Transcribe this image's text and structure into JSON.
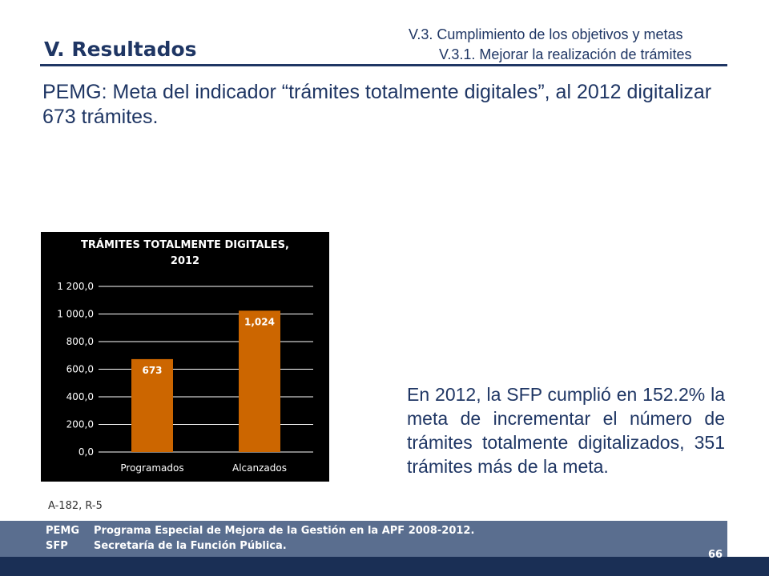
{
  "header": {
    "section_title": "V. Resultados",
    "subtitle_1": "V.3. Cumplimiento de los objetivos y metas",
    "subtitle_2": "V.3.1. Mejorar la realización de trámites"
  },
  "intro_text": "PEMG: Meta del indicador “trámites totalmente digitales”, al 2012 digitalizar 673 trámites.",
  "chart_data": {
    "type": "bar",
    "title_line1": "TRÁMITES TOTALMENTE DIGITALES,",
    "title_line2": "2012",
    "categories": [
      "Programados",
      "Alcanzados"
    ],
    "values": [
      673,
      1024
    ],
    "data_labels": [
      "673",
      "1,024"
    ],
    "y_ticks": [
      0,
      200,
      400,
      600,
      800,
      1000,
      1200
    ],
    "y_tick_labels": [
      "0,0",
      "200,0",
      "400,0",
      "600,0",
      "800,0",
      "1 000,0",
      "1 200,0"
    ],
    "ylim": [
      0,
      1200
    ],
    "grid": true,
    "colors": {
      "bar": "#cc6600",
      "background": "#000000",
      "text": "#ffffff",
      "grid": "#ffffff"
    }
  },
  "summary_text": "En 2012, la SFP cumplió en 152.2% la meta de incrementar el número de trámites totalmente digitalizados, 351 trámites más de la meta.",
  "reference": "A-182, R-5",
  "footer": {
    "line1_abbr": "PEMG",
    "line1_text": "Programa Especial de Mejora de la Gestión en la APF 2008-2012.",
    "line2_abbr": "SFP",
    "line2_text": "Secretaría de la Función Pública.",
    "page_number": "66"
  }
}
